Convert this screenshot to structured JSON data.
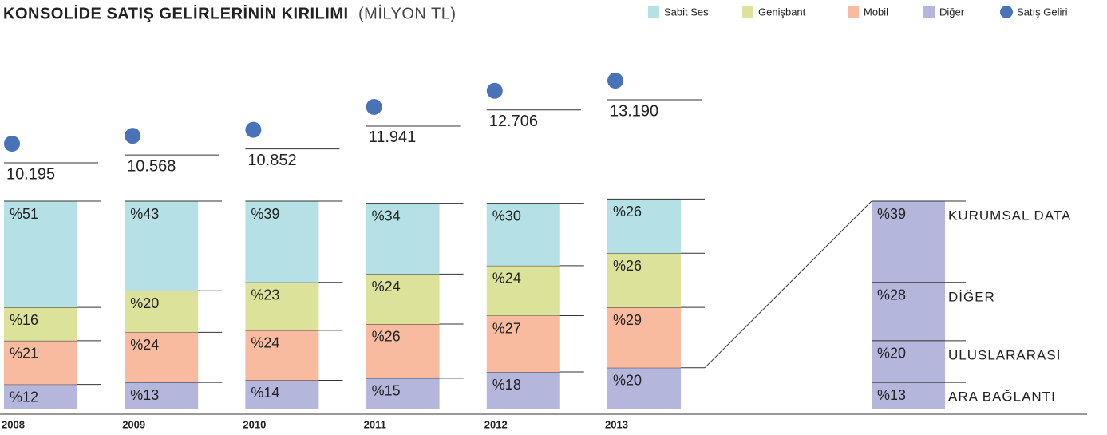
{
  "chart_data": [
    {
      "type": "stacked-bar",
      "title": "KONSOLİDE SATIŞ GELİRLERİNİN KIRILIMI",
      "subtitle": "(MİLYON TL)",
      "categories": [
        "2008",
        "2009",
        "2010",
        "2011",
        "2012",
        "2013"
      ],
      "series": [
        {
          "name": "Sabit Ses",
          "color": "#b5e1e6",
          "values": [
            51,
            43,
            39,
            34,
            30,
            26
          ],
          "value_labels": [
            "%51",
            "%43",
            "%39",
            "%34",
            "%30",
            "%26"
          ]
        },
        {
          "name": "Genişbant",
          "color": "#dde29b",
          "values": [
            16,
            20,
            23,
            24,
            24,
            26
          ],
          "value_labels": [
            "%16",
            "%20",
            "%23",
            "%24",
            "%24",
            "%26"
          ]
        },
        {
          "name": "Mobil",
          "color": "#f8bba0",
          "values": [
            21,
            24,
            24,
            26,
            27,
            29
          ],
          "value_labels": [
            "%21",
            "%24",
            "%24",
            "%26",
            "%27",
            "%29"
          ]
        },
        {
          "name": "Diğer",
          "color": "#b5b6dc",
          "values": [
            12,
            13,
            14,
            15,
            18,
            20
          ],
          "value_labels": [
            "%12",
            "%13",
            "%14",
            "%15",
            "%18",
            "%20"
          ]
        }
      ],
      "revenue": {
        "name": "Satış Geliri",
        "color": "#4a72b8",
        "values": [
          10195,
          10568,
          10852,
          11941,
          12706,
          13190
        ],
        "value_labels": [
          "10.195",
          "10.568",
          "10.852",
          "11.941",
          "12.706",
          "13.190"
        ]
      },
      "legend": "top-right"
    },
    {
      "type": "stacked-bar",
      "categories": [
        "KURUMSAL DATA",
        "DİĞER",
        "ULUSLARARASI",
        "ARA BAĞLANTI"
      ],
      "values": [
        39,
        28,
        20,
        13
      ],
      "value_labels": [
        "%39",
        "%28",
        "%20",
        "%13"
      ],
      "color": "#b5b6dc"
    }
  ]
}
